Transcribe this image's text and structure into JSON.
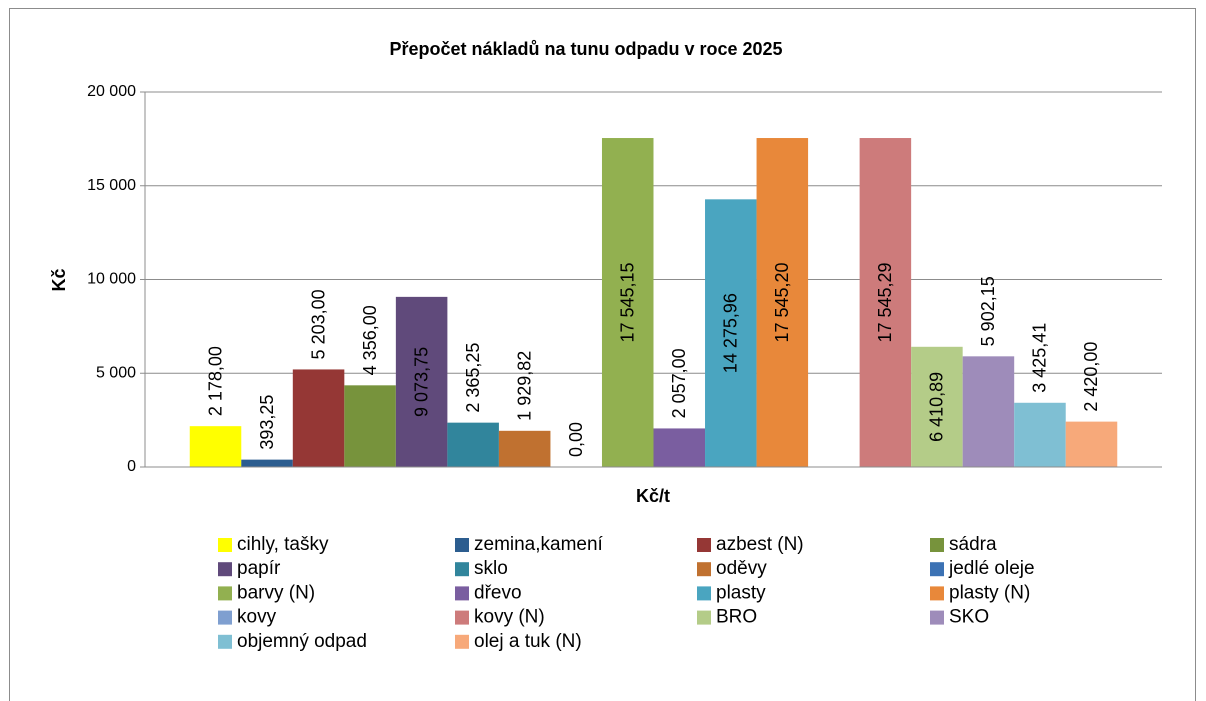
{
  "chart_data": {
    "type": "bar",
    "title": "Přepočet nákladů na tunu odpadu v roce 2025",
    "x_label": "Kč/t",
    "y_label": "Kč",
    "categories": [
      null
    ],
    "ylim": [
      0,
      20000
    ],
    "yticks": [
      0,
      {
        "value": 5000,
        "label": "5 000"
      },
      {
        "value": 10000,
        "label": "10 000"
      },
      {
        "value": 15000,
        "label": "15 000"
      },
      {
        "value": 20000,
        "label": "20 000"
      }
    ],
    "grid": true,
    "legend": "bottom",
    "series": [
      {
        "name": "cihly, tašky",
        "color": "#ffff00",
        "values": [
          2178.0
        ],
        "value_labels": [
          "2 178,00"
        ]
      },
      {
        "name": "zemina,kamení",
        "color": "#2c5d8f",
        "values": [
          393.25
        ],
        "value_labels": [
          "393,25"
        ]
      },
      {
        "name": "azbest (N)",
        "color": "#953735",
        "values": [
          5203.0
        ],
        "value_labels": [
          "5 203,00"
        ]
      },
      {
        "name": "sádra",
        "color": "#77933c",
        "values": [
          4356.0
        ],
        "value_labels": [
          "4 356,00"
        ]
      },
      {
        "name": "papír",
        "color": "#604a7b",
        "values": [
          9073.75
        ],
        "value_labels": [
          "9 073,75"
        ]
      },
      {
        "name": "sklo",
        "color": "#31859c",
        "values": [
          2365.25
        ],
        "value_labels": [
          "2 365,25"
        ]
      },
      {
        "name": "oděvy",
        "color": "#c07130",
        "values": [
          1929.82
        ],
        "value_labels": [
          "1 929,82"
        ]
      },
      {
        "name": "jedlé oleje",
        "color": "#3c72b4",
        "values": [
          0
        ],
        "value_labels": [
          "0,00"
        ]
      },
      {
        "name": "barvy (N)",
        "color": "#92b050",
        "values": [
          17545.15
        ],
        "value_labels": [
          "17 545,15"
        ]
      },
      {
        "name": "dřevo",
        "color": "#7a5ea0",
        "values": [
          2057.0
        ],
        "value_labels": [
          "2 057,00"
        ]
      },
      {
        "name": "plasty",
        "color": "#4aa5c0",
        "values": [
          14275.96
        ],
        "value_labels": [
          "14 275,96"
        ]
      },
      {
        "name": "plasty (N)",
        "color": "#e8883a",
        "values": [
          17545.2
        ],
        "value_labels": [
          "17 545,20"
        ]
      },
      {
        "name": "kovy",
        "color": "#7f9fd0",
        "values": [
          null
        ]
      },
      {
        "name": "kovy (N)",
        "color": "#cd7b7b",
        "values": [
          17545.29
        ],
        "value_labels": [
          "17 545,29"
        ]
      },
      {
        "name": "BRO",
        "color": "#b4cc88",
        "values": [
          6410.89
        ],
        "value_labels": [
          "6 410,89"
        ]
      },
      {
        "name": "SKO",
        "color": "#9e8cba",
        "values": [
          5902.15
        ],
        "value_labels": [
          "5 902,15"
        ]
      },
      {
        "name": "objemný odpad",
        "color": "#7fbfd3",
        "values": [
          3425.41
        ],
        "value_labels": [
          "3 425,41"
        ]
      },
      {
        "name": "olej a tuk (N)",
        "color": "#f7a97a",
        "values": [
          2420.0
        ],
        "value_labels": [
          "2 420,00"
        ]
      }
    ]
  }
}
